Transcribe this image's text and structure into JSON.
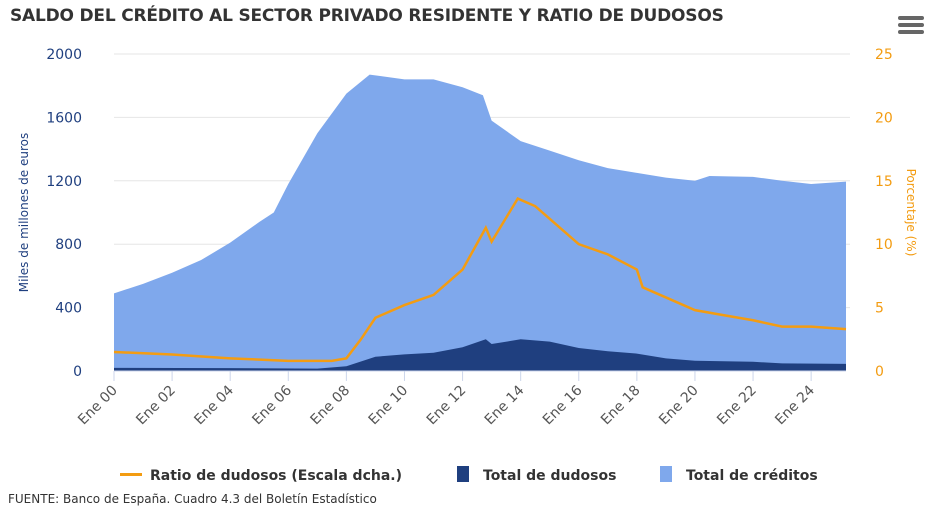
{
  "chart_data": {
    "type": "area",
    "title": "SALDO DEL CRÉDITO AL SECTOR PRIVADO RESIDENTE Y RATIO DE DUDOSOS",
    "ylabel": "Miles de millones de euros",
    "y2label": "Porcentaje (%)",
    "ylim": [
      0,
      2000
    ],
    "y2lim": [
      0,
      25
    ],
    "yticks": [
      "0",
      "400",
      "800",
      "1200",
      "1600",
      "2000"
    ],
    "y2ticks": [
      "0",
      "5",
      "10",
      "15",
      "20",
      "25"
    ],
    "xticks": [
      "Ene 00",
      "Ene 02",
      "Ene 04",
      "Ene 06",
      "Ene 08",
      "Ene 10",
      "Ene 12",
      "Ene 14",
      "Ene 16",
      "Ene 18",
      "Ene 20",
      "Ene 22",
      "Ene 24"
    ],
    "xtick_years": [
      2000,
      2002,
      2004,
      2006,
      2008,
      2010,
      2012,
      2014,
      2016,
      2018,
      2020,
      2022,
      2024
    ],
    "xlim": [
      2000,
      2025.2
    ],
    "grid": true,
    "legend_position": "bottom",
    "colors": {
      "ratio": "#f39c12",
      "dudosos": "#1f3f7f",
      "creditos": "#7fa8ec",
      "left_axis": "#1f3f7f",
      "right_axis": "#f39c12"
    },
    "series": [
      {
        "name": "Total de créditos",
        "axis": "left",
        "type": "area",
        "x": [
          2000,
          2001,
          2002,
          2003,
          2004,
          2005,
          2005.5,
          2006,
          2007,
          2008,
          2008.8,
          2010,
          2011,
          2012,
          2012.7,
          2013,
          2014,
          2015,
          2016,
          2017,
          2018,
          2019,
          2020,
          2020.5,
          2022,
          2023,
          2024,
          2025.2
        ],
        "values": [
          490,
          550,
          620,
          700,
          810,
          940,
          1000,
          1180,
          1500,
          1750,
          1870,
          1840,
          1840,
          1790,
          1740,
          1580,
          1450,
          1390,
          1330,
          1280,
          1250,
          1220,
          1200,
          1230,
          1225,
          1200,
          1180,
          1195
        ]
      },
      {
        "name": "Total de dudosos",
        "axis": "left",
        "type": "area",
        "x": [
          2000,
          2004,
          2007,
          2008,
          2009,
          2010,
          2011,
          2012,
          2012.8,
          2013,
          2014,
          2015,
          2016,
          2017,
          2018,
          2019,
          2020,
          2022,
          2023,
          2025.2
        ],
        "values": [
          20,
          18,
          15,
          30,
          90,
          105,
          115,
          150,
          200,
          170,
          200,
          185,
          145,
          125,
          110,
          80,
          65,
          58,
          48,
          45
        ]
      },
      {
        "name": "Ratio de dudosos (Escala dcha.)",
        "axis": "right",
        "type": "line",
        "x": [
          2000,
          2002,
          2004,
          2006,
          2007.5,
          2008,
          2008.5,
          2009,
          2010,
          2011,
          2012,
          2012.8,
          2013,
          2013.9,
          2014.5,
          2015,
          2016,
          2017,
          2018,
          2018.2,
          2019,
          2020,
          2021,
          2022,
          2023,
          2024,
          2025.2
        ],
        "values": [
          1.5,
          1.3,
          1.0,
          0.8,
          0.8,
          1.0,
          2.5,
          4.2,
          5.2,
          6.0,
          8.0,
          11.3,
          10.2,
          13.6,
          13.0,
          12.0,
          10.0,
          9.2,
          8.0,
          6.6,
          5.8,
          4.8,
          4.4,
          4.0,
          3.5,
          3.5,
          3.3
        ]
      }
    ]
  },
  "source": "FUENTE: Banco de España. Cuadro 4.3 del Boletín Estadístico"
}
